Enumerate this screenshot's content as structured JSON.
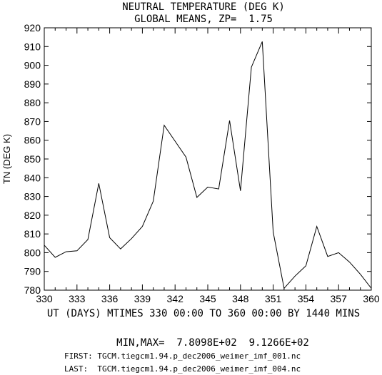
{
  "chart_data": {
    "type": "line",
    "title": "NEUTRAL TEMPERATURE (DEG K)",
    "subtitle": "GLOBAL MEANS, ZP=  1.75",
    "xlabel": "UT (DAYS) MTIMES 330 00:00 TO 360 00:00 BY 1440 MINS",
    "ylabel": "TN (DEG K)",
    "xlim": [
      330,
      360
    ],
    "ylim": [
      780,
      920
    ],
    "xticks": [
      330,
      333,
      336,
      339,
      342,
      345,
      348,
      351,
      354,
      357,
      360
    ],
    "yticks": [
      780,
      790,
      800,
      810,
      820,
      830,
      840,
      850,
      860,
      870,
      880,
      890,
      900,
      910,
      920
    ],
    "grid": false,
    "series": [
      {
        "x": [
          330,
          331,
          332,
          333,
          334,
          335,
          336,
          337,
          338,
          339,
          340,
          341,
          342,
          343,
          344,
          345,
          346,
          347,
          348,
          349,
          350,
          351,
          352,
          353,
          354,
          355,
          356,
          357,
          358,
          359,
          360
        ],
        "values": [
          804,
          797.5,
          800.5,
          801,
          807,
          837,
          808,
          802,
          807.5,
          814,
          827.5,
          868,
          859.5,
          851,
          829.5,
          835,
          834,
          870.5,
          833,
          899,
          912.66,
          811,
          780.98,
          787.5,
          793,
          814,
          798,
          800,
          795,
          788.5,
          781
        ]
      }
    ],
    "footer": {
      "minmax": "MIN,MAX=  7.8098E+02  9.1266E+02",
      "first": "FIRST: TGCM.tiegcm1.94.p_dec2006_weimer_imf_001.nc",
      "last": "LAST:  TGCM.tiegcm1.94.p_dec2006_weimer_imf_004.nc"
    }
  }
}
